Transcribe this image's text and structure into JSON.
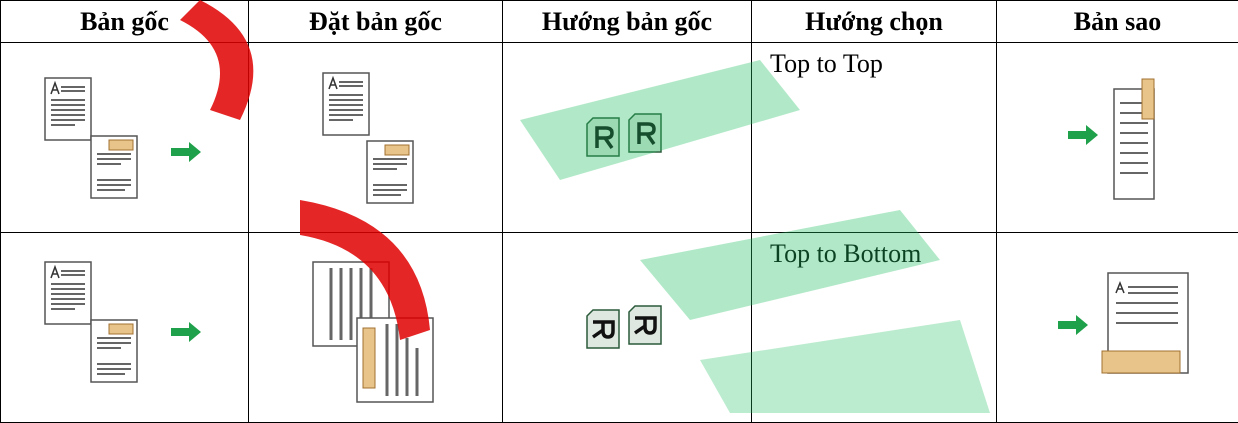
{
  "table": {
    "header": [
      "Bản gốc",
      "Đặt bản gốc",
      "Hướng bản gốc",
      "Hướng chọn",
      "Bản sao"
    ],
    "rows": [
      {
        "orientation_choice": "Top to Top"
      },
      {
        "orientation_choice": "Top to Bottom"
      }
    ]
  }
}
